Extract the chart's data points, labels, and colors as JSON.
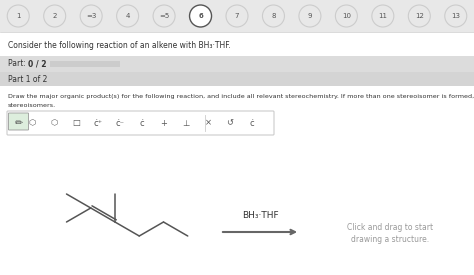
{
  "bg_color": "#e8e8e8",
  "white": "#ffffff",
  "dark_gray": "#555555",
  "light_gray": "#cccccc",
  "medium_gray": "#999999",
  "black": "#333333",
  "nav_numbers": [
    "1",
    "2",
    "=3",
    "4",
    "=5",
    "6",
    "7",
    "8",
    "9",
    "10",
    "11",
    "12",
    "13"
  ],
  "nav_selected": 5,
  "nav_equals": [
    2,
    4
  ],
  "title_text": "Consider the following reaction of an alkene with BH₃·THF.",
  "part_score": "Part: 0 / 2",
  "part_label": "Part 1 of 2",
  "instruction_line1": "Draw the major organic product(s) for the following reaction, and include all relevant stereochemistry. If more than one stereoisomer is formed, show both",
  "instruction_line2": "stereoisomers.",
  "reagent_text": "BH₃·THF",
  "click_line1": "Click and drag to start",
  "click_line2": "drawing a structure.",
  "bond_color": "#555555",
  "arrow_color": "#666666"
}
